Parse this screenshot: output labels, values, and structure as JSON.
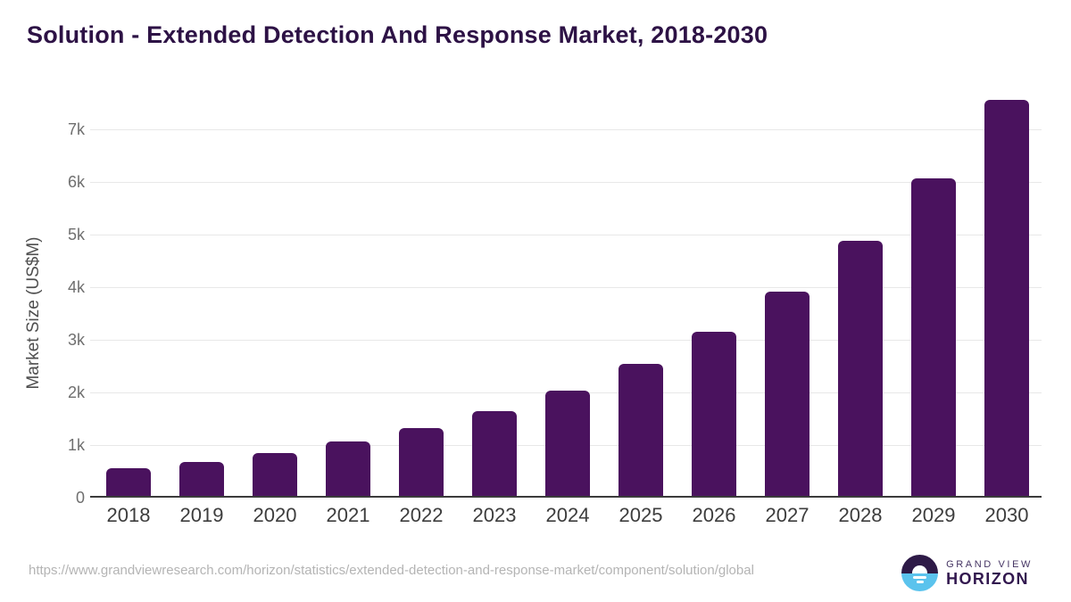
{
  "header": {
    "title": "Solution - Extended Detection And Response Market, 2018-2030"
  },
  "chart_data": {
    "type": "bar",
    "title": "Solution - Extended Detection And Response Market, 2018-2030",
    "categories": [
      "2018",
      "2019",
      "2020",
      "2021",
      "2022",
      "2023",
      "2024",
      "2025",
      "2026",
      "2027",
      "2028",
      "2029",
      "2030"
    ],
    "values": [
      560,
      675,
      845,
      1070,
      1320,
      1645,
      2030,
      2540,
      3160,
      3920,
      4880,
      6070,
      7560
    ],
    "xlabel": "",
    "ylabel": "Market Size (US$M)",
    "ylim": [
      0,
      8000
    ],
    "yticks": [
      {
        "value": 0,
        "label": "0"
      },
      {
        "value": 1000,
        "label": "1k"
      },
      {
        "value": 2000,
        "label": "2k"
      },
      {
        "value": 3000,
        "label": "3k"
      },
      {
        "value": 4000,
        "label": "4k"
      },
      {
        "value": 5000,
        "label": "5k"
      },
      {
        "value": 6000,
        "label": "6k"
      },
      {
        "value": 7000,
        "label": "7k"
      }
    ],
    "grid": true,
    "legend": false,
    "bar_color": "#4a125e"
  },
  "footer": {
    "source_url": "https://www.grandviewresearch.com/horizon/statistics/extended-detection-and-response-market/component/solution/global",
    "logo": {
      "brand_top": "GRAND VIEW",
      "brand_bottom": "HORIZON"
    }
  },
  "colors": {
    "title_text": "#2d1245",
    "bar_fill": "#4a125e",
    "gridline": "#e8e8e8",
    "axis_line": "#3b3b3b",
    "x_tick_text": "#3d3d3d",
    "y_tick_text": "#6f6f6f",
    "url_text": "#b4b4b4",
    "logo_purple": "#2e1a47",
    "logo_blue": "#5bc3ed"
  }
}
